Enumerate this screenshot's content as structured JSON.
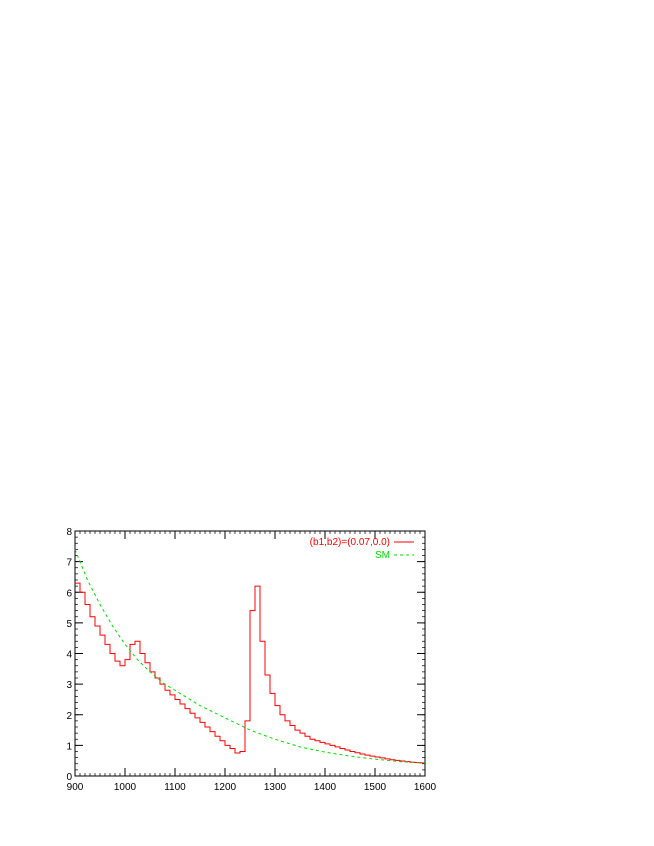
{
  "chart_data": {
    "type": "line",
    "title": "",
    "xlabel": "",
    "ylabel": "",
    "xlim": [
      900,
      1600
    ],
    "ylim": [
      0,
      8
    ],
    "x_ticks": [
      900,
      1000,
      1100,
      1200,
      1300,
      1400,
      1500,
      1600
    ],
    "y_ticks": [
      0,
      1,
      2,
      3,
      4,
      5,
      6,
      7,
      8
    ],
    "grid": false,
    "legend_position": "top-right",
    "series": [
      {
        "name": "(b1,b2)=(0.07,0.0)",
        "color": "#ff0000",
        "style": "solid-step",
        "bin_width": 10,
        "bin_start": 900,
        "values": [
          6.3,
          6.0,
          5.6,
          5.2,
          4.9,
          4.6,
          4.3,
          4.0,
          3.75,
          3.6,
          3.8,
          4.3,
          4.4,
          4.0,
          3.7,
          3.4,
          3.2,
          3.0,
          2.8,
          2.65,
          2.5,
          2.35,
          2.2,
          2.05,
          1.9,
          1.75,
          1.6,
          1.45,
          1.3,
          1.15,
          1.0,
          0.9,
          0.75,
          0.8,
          1.8,
          5.4,
          6.2,
          4.4,
          3.3,
          2.7,
          2.3,
          2.0,
          1.8,
          1.65,
          1.5,
          1.4,
          1.3,
          1.2,
          1.15,
          1.1,
          1.05,
          1.0,
          0.95,
          0.9,
          0.85,
          0.8,
          0.76,
          0.72,
          0.68,
          0.65,
          0.62,
          0.59,
          0.56,
          0.53,
          0.51,
          0.49,
          0.47,
          0.45,
          0.44,
          0.43
        ]
      },
      {
        "name": "SM",
        "color": "#00dd00",
        "style": "dashed",
        "x": [
          900,
          925,
          950,
          975,
          1000,
          1025,
          1050,
          1075,
          1100,
          1150,
          1200,
          1250,
          1300,
          1350,
          1400,
          1450,
          1500,
          1550,
          1600
        ],
        "y": [
          7.4,
          6.4,
          5.6,
          4.9,
          4.3,
          3.8,
          3.4,
          3.05,
          2.8,
          2.3,
          1.9,
          1.5,
          1.2,
          0.95,
          0.78,
          0.65,
          0.55,
          0.47,
          0.42
        ]
      }
    ]
  }
}
